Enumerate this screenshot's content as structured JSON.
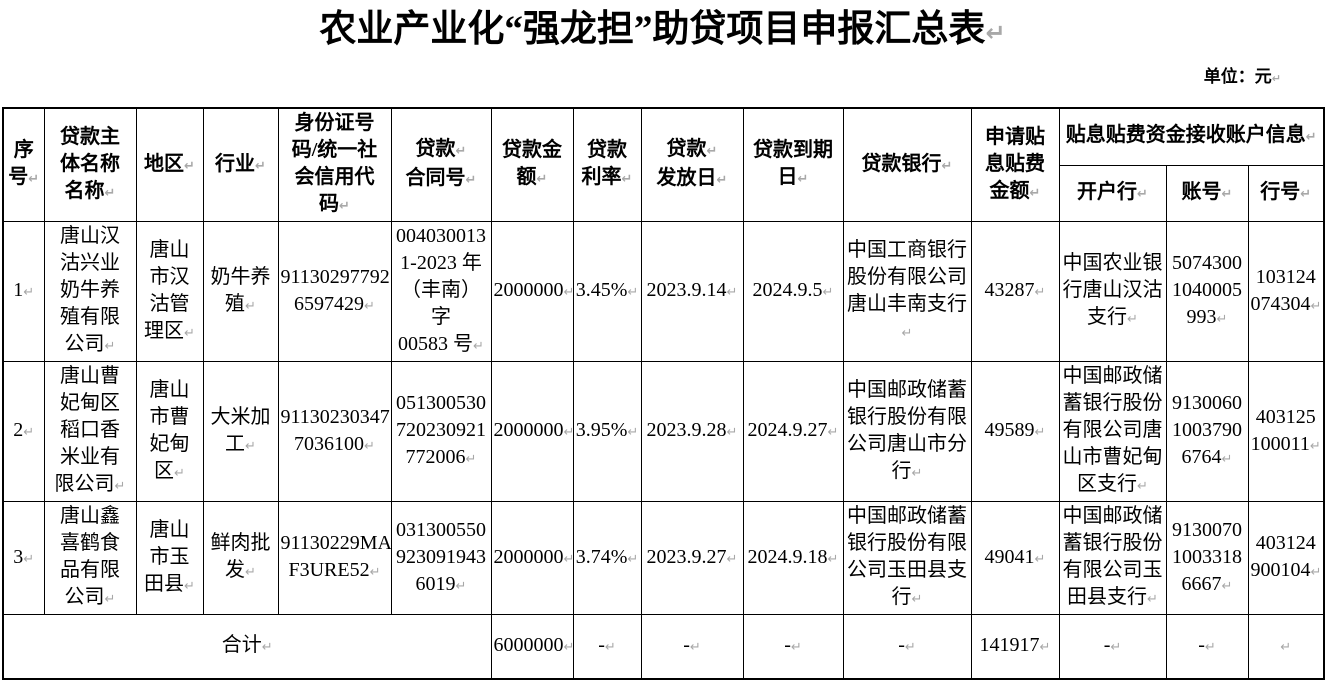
{
  "title": "农业产业化“强龙担”助贷项目申报汇总表↵",
  "unit_label": "单位：元↵",
  "table": {
    "headers": {
      "seq": "序\n号↵",
      "borrower": "贷款主\n体名称\n名称↵",
      "region": "地区↵",
      "industry": "行业↵",
      "credit_code": "身份证号\n码/统一社\n会信用代\n码↵",
      "contract_no": "贷款↵\n合同号↵",
      "amount": "贷款金\n额↵",
      "rate": "贷款\n利率↵",
      "issue_date": "贷款↵\n发放日↵",
      "due_date": "贷款到期\n日↵",
      "bank": "贷款银行↵",
      "subsidy": "申请贴\n息贴费\n金额↵",
      "account_group": "贴息贴费资金接收账户信息↵",
      "account_bank": "开户行↵",
      "account_no": "账号↵",
      "bank_no": "行号↵"
    },
    "rows": [
      {
        "seq": "1↵",
        "name": "唐山汉\n沽兴业\n奶牛养\n殖有限\n公司↵",
        "region": "唐山\n市汉\n沽管\n理区↵",
        "industry": "奶牛养\n殖↵",
        "credit_code": "91130297792\n6597429↵",
        "contract_no": "004030013\n1-2023 年\n（丰南）字\n00583 号↵",
        "amount": "2000000↵",
        "rate": "3.45%↵",
        "issue_date": "2023.9.14↵",
        "due_date": "2024.9.5↵",
        "bank": "中国工商银行\n股份有限公司\n唐山丰南支行↵",
        "subsidy": "43287↵",
        "account_bank": "中国农业银\n行唐山汉沽\n支行↵",
        "account_no": "5074300\n1040005\n993↵",
        "bank_no": "103124\n074304↵"
      },
      {
        "seq": "2↵",
        "name": "唐山曹\n妃甸区\n稻口香\n米业有\n限公司↵",
        "region": "唐山\n市曹\n妃甸\n区↵",
        "industry": "大米加\n工↵",
        "credit_code": "91130230347\n7036100↵",
        "contract_no": "051300530\n720230921\n772006↵",
        "amount": "2000000↵",
        "rate": "3.95%↵",
        "issue_date": "2023.9.28↵",
        "due_date": "2024.9.27↵",
        "bank": "中国邮政储蓄\n银行股份有限\n公司唐山市分\n行↵",
        "subsidy": "49589↵",
        "account_bank": "中国邮政储\n蓄银行股份\n有限公司唐\n山市曹妃甸\n区支行↵",
        "account_no": "9130060\n1003790\n6764↵",
        "bank_no": "403125\n100011↵"
      },
      {
        "seq": "3↵",
        "name": "唐山鑫\n喜鹤食\n品有限\n公司↵",
        "region": "唐山\n市玉\n田县↵",
        "industry": "鲜肉批\n发↵",
        "credit_code": "91130229MA0\nF3URE52↵",
        "contract_no": "031300550\n923091943\n6019↵",
        "amount": "2000000↵",
        "rate": "3.74%↵",
        "issue_date": "2023.9.27↵",
        "due_date": "2024.9.18↵",
        "bank": "中国邮政储蓄\n银行股份有限\n公司玉田县支\n行↵",
        "subsidy": "49041↵",
        "account_bank": "中国邮政储\n蓄银行股份\n有限公司玉\n田县支行↵",
        "account_no": "9130070\n1003318\n6667↵",
        "bank_no": "403124\n900104↵"
      }
    ],
    "total": {
      "label": "合计↵",
      "amount": "6000000↵",
      "rate": "-↵",
      "issue_date": "-↵",
      "due_date": "-↵",
      "bank": "-↵",
      "subsidy": "141917↵",
      "account_bank": "-↵",
      "account_no": "-↵",
      "bank_no": "↵"
    }
  }
}
